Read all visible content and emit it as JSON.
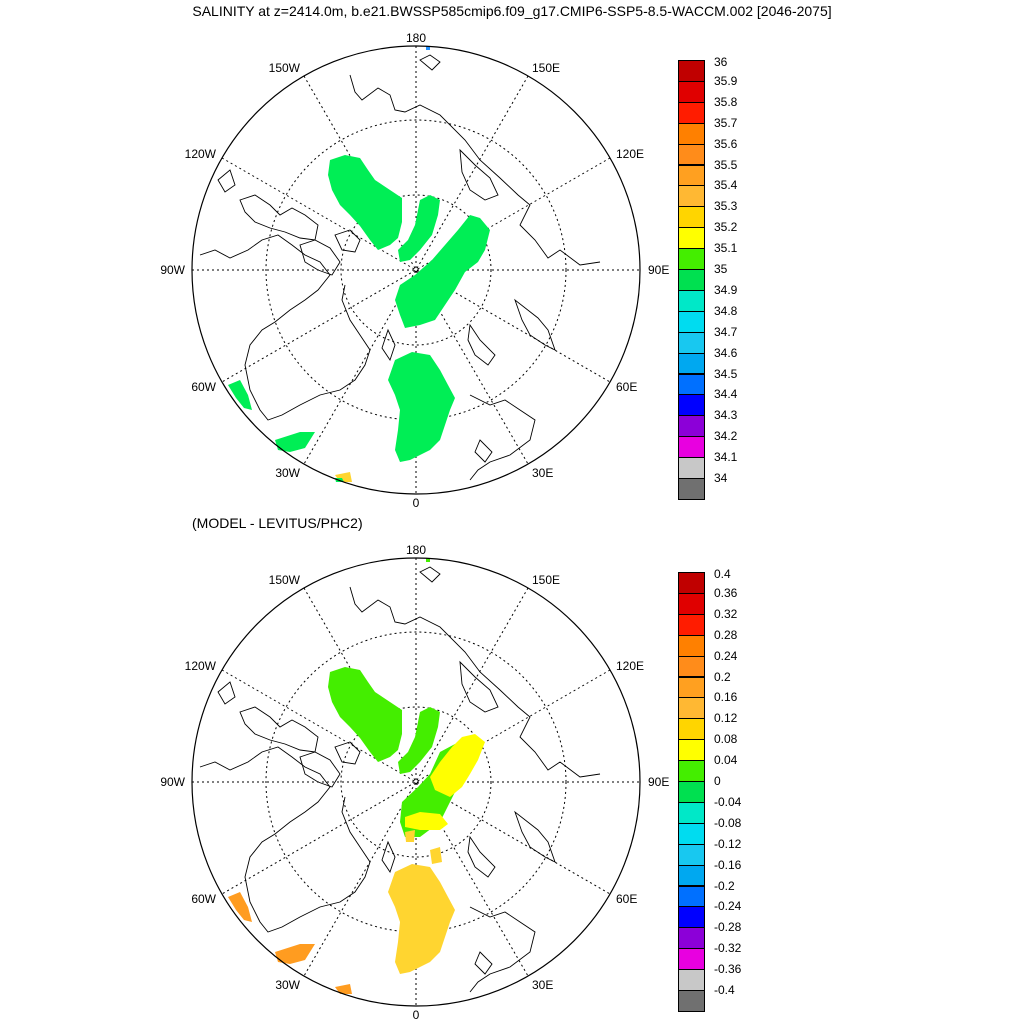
{
  "title": "SALINITY at z=2414.0m, b.e21.BWSSP585cmip6.f09_g17.CMIP6-SSP5-8.5-WACCM.002 [2046-2075]",
  "subtitle": "(MODEL - LEVITUS/PHC2)",
  "longitude_labels": {
    "top": "180",
    "bottom": "0",
    "left": "90W",
    "right": "90E",
    "nw1": "150W",
    "nw2": "120W",
    "sw1": "60W",
    "sw2": "30W",
    "ne1": "150E",
    "ne2": "120E",
    "se1": "60E",
    "se2": "30E"
  },
  "colorbar_top": {
    "labels": [
      "36",
      "35.9",
      "35.8",
      "35.7",
      "35.6",
      "35.5",
      "35.4",
      "35.3",
      "35.2",
      "35.1",
      "35",
      "34.9",
      "34.8",
      "34.7",
      "34.6",
      "34.5",
      "34.4",
      "34.3",
      "34.2",
      "34.1",
      "34"
    ],
    "colors": [
      "#c00000",
      "#e00000",
      "#ff1c00",
      "#ff8000",
      "#ff8c1a",
      "#ffa020",
      "#ffb833",
      "#ffd500",
      "#ffff00",
      "#44ee00",
      "#00e050",
      "#00e8c8",
      "#00dcf0",
      "#18c8f0",
      "#00a8f0",
      "#0070ff",
      "#0000ff",
      "#8c00d8",
      "#e800e0",
      "#c8c8c8",
      "#707070"
    ]
  },
  "colorbar_bottom": {
    "labels": [
      "0.4",
      "0.36",
      "0.32",
      "0.28",
      "0.24",
      "0.2",
      "0.16",
      "0.12",
      "0.08",
      "0.04",
      "0",
      "-0.04",
      "-0.08",
      "-0.12",
      "-0.16",
      "-0.2",
      "-0.24",
      "-0.28",
      "-0.32",
      "-0.36",
      "-0.4"
    ],
    "colors": [
      "#c00000",
      "#e00000",
      "#ff1c00",
      "#ff8000",
      "#ff8c1a",
      "#ffa020",
      "#ffb833",
      "#ffd500",
      "#ffff00",
      "#44ee00",
      "#00e050",
      "#00e8c8",
      "#00dcf0",
      "#18c8f0",
      "#00a8f0",
      "#0070ff",
      "#0000ff",
      "#8c00d8",
      "#e800e0",
      "#c8c8c8",
      "#707070"
    ]
  },
  "region_colors": {
    "green": "#00ee55",
    "diff_green": "#44ee00",
    "yellow": "#ffff00",
    "gold": "#ffd530",
    "orange": "#ff9c20",
    "blue": "#1e90ff"
  }
}
